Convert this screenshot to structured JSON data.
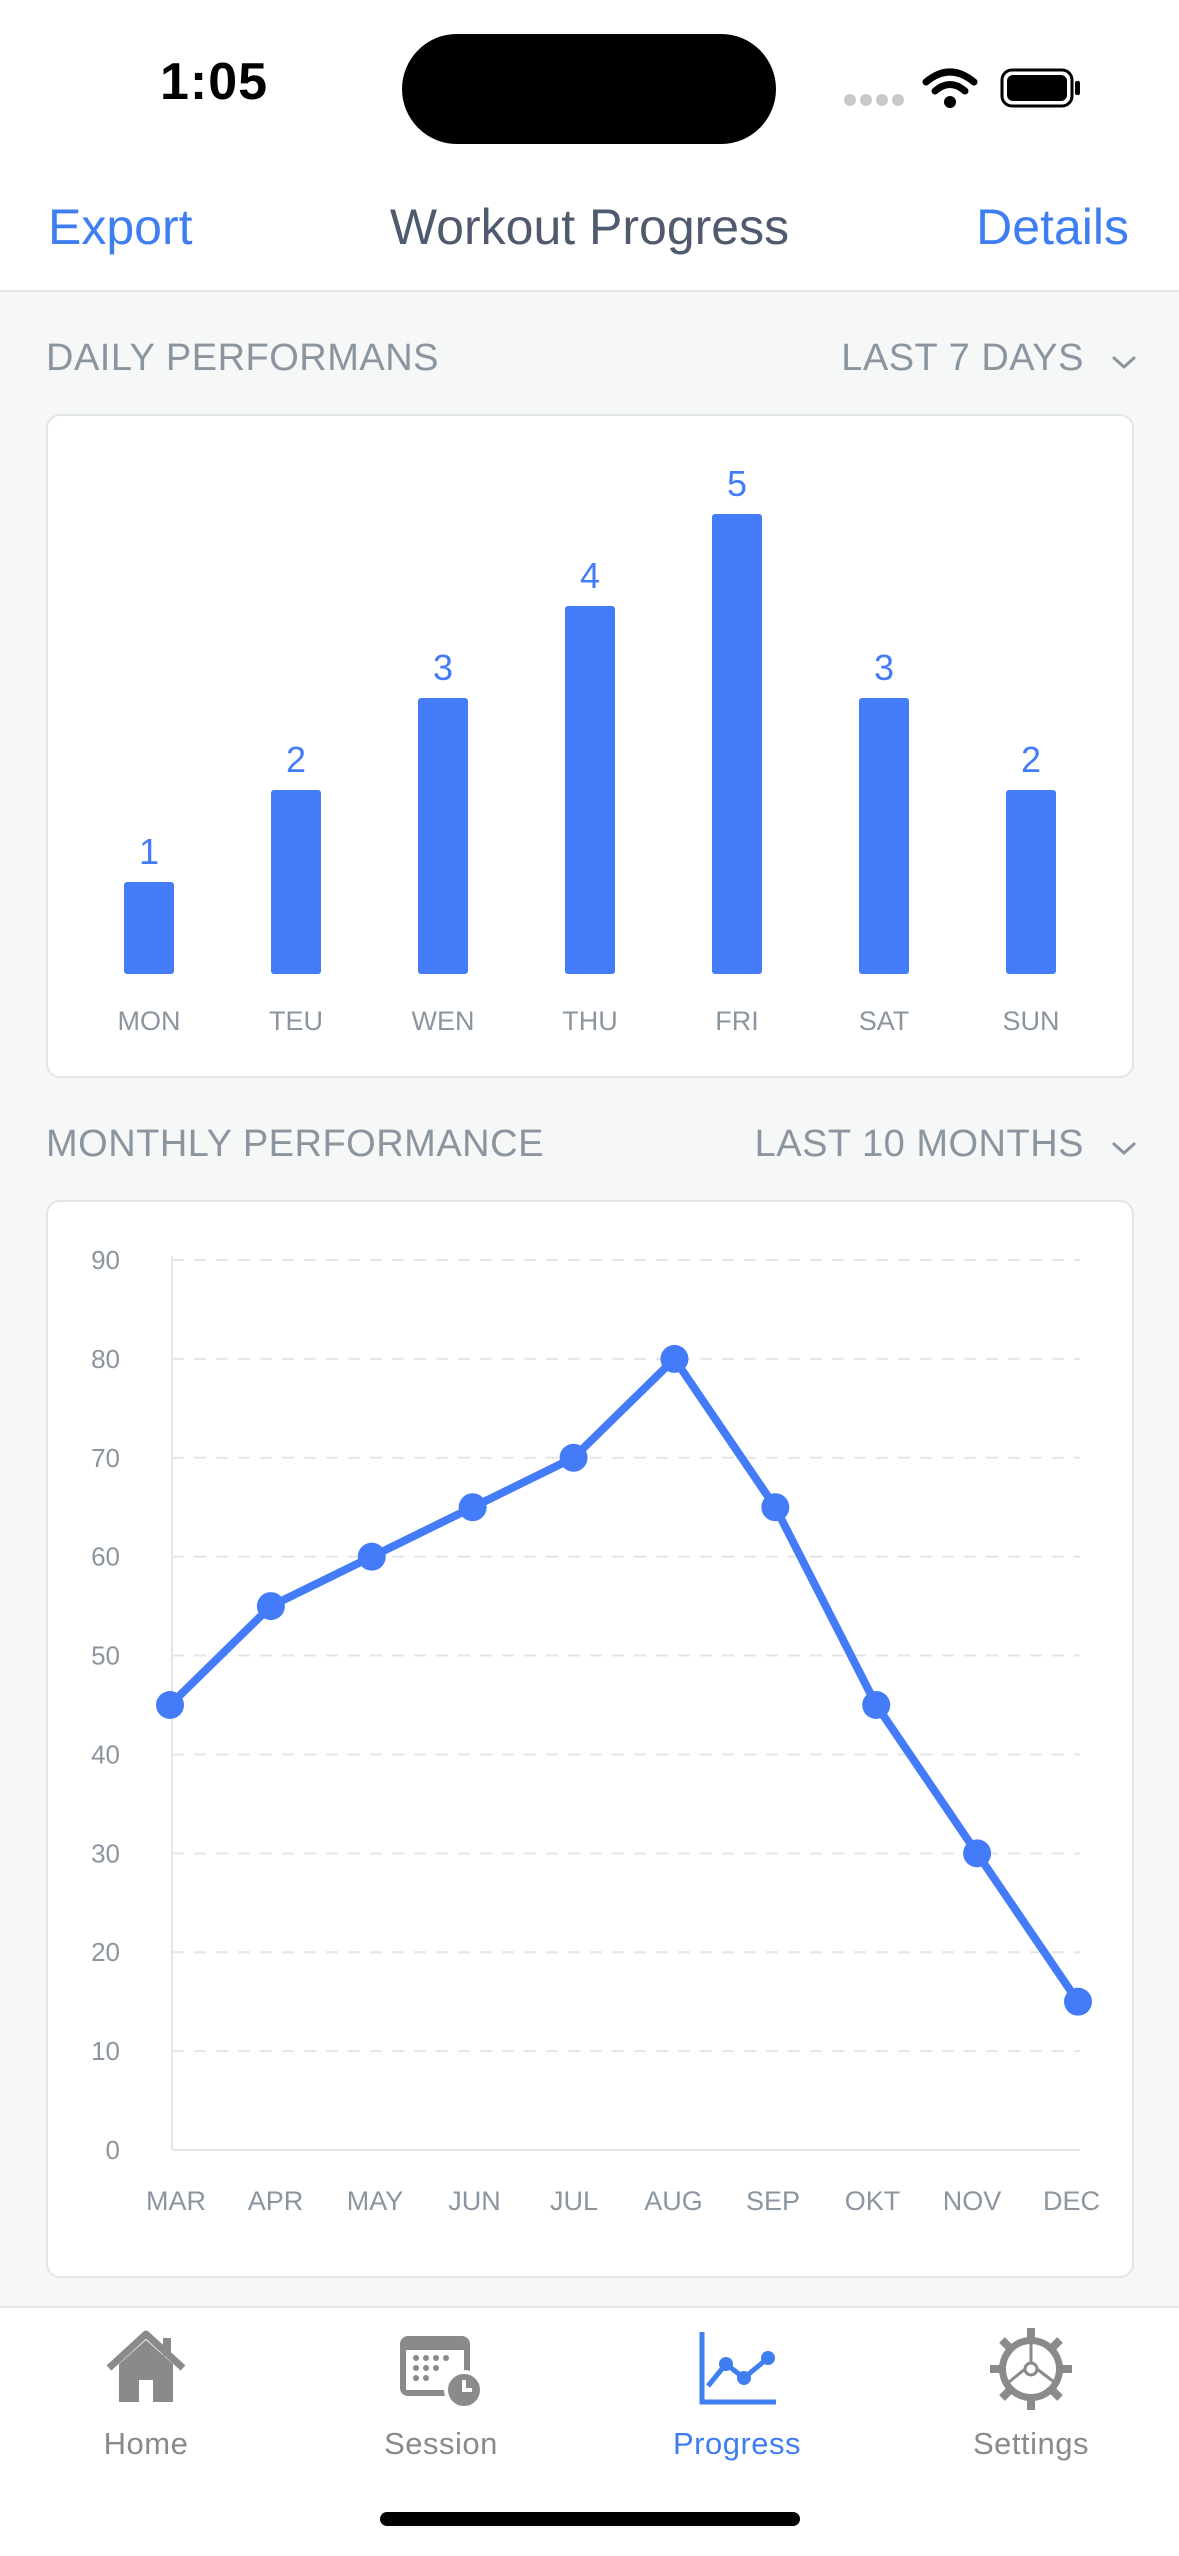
{
  "status": {
    "time": "1:05"
  },
  "nav": {
    "left": "Export",
    "title": "Workout Progress",
    "right": "Details"
  },
  "daily": {
    "title": "DAILY PERFORMANS",
    "range": "LAST 7 DAYS"
  },
  "monthly": {
    "title": "MONTHLY PERFORMANCE",
    "range": "LAST 10 MONTHS"
  },
  "tabs": [
    {
      "label": "Home",
      "icon": "home-icon",
      "active": false
    },
    {
      "label": "Session",
      "icon": "calendar-clock-icon",
      "active": false
    },
    {
      "label": "Progress",
      "icon": "line-chart-icon",
      "active": true
    },
    {
      "label": "Settings",
      "icon": "gear-icon",
      "active": false
    }
  ],
  "colors": {
    "accent": "#3f7ef0",
    "bar": "#437bf8",
    "muted": "#8a959f"
  },
  "chart_data": [
    {
      "type": "bar",
      "categories": [
        "MON",
        "TEU",
        "WEN",
        "THU",
        "FRI",
        "SAT",
        "SUN"
      ],
      "values": [
        1,
        2,
        3,
        4,
        5,
        3,
        2
      ],
      "data_labels": [
        "1",
        "2",
        "3",
        "4",
        "5",
        "3",
        "2"
      ],
      "title": "",
      "xlabel": "",
      "ylabel": "",
      "ylim": [
        0,
        5
      ]
    },
    {
      "type": "line",
      "x": [
        "MAR",
        "APR",
        "MAY",
        "JUN",
        "JUL",
        "AUG",
        "SEP",
        "OKT",
        "NOV",
        "DEC"
      ],
      "y": [
        45,
        55,
        60,
        65,
        70,
        80,
        65,
        45,
        30,
        15
      ],
      "yticks": [
        "0",
        "10",
        "20",
        "30",
        "40",
        "50",
        "60",
        "70",
        "80",
        "90"
      ],
      "ylim": [
        0,
        90
      ],
      "grid": true,
      "title": "",
      "xlabel": "",
      "ylabel": ""
    }
  ]
}
